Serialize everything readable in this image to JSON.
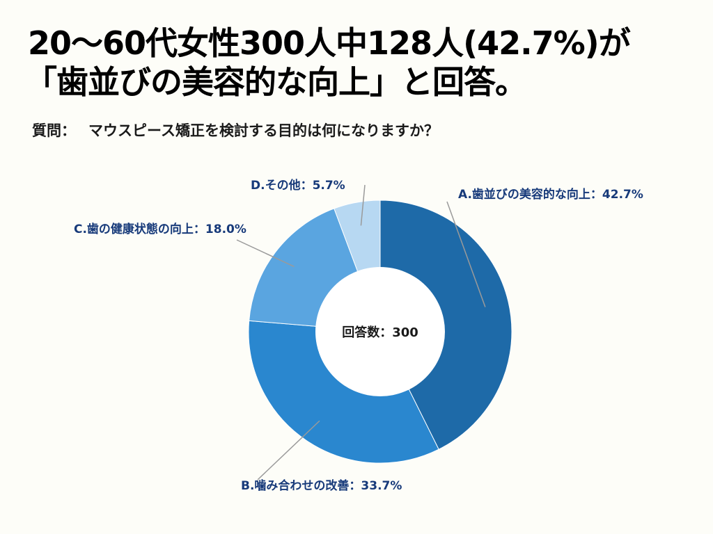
{
  "headline": {
    "line1": "20〜60代女性300人中128人(42.7%)が",
    "line2": "「歯並びの美容的な向上」と回答。"
  },
  "question": {
    "prefix": "質問：",
    "text": "マウスピース矯正を検討する目的は何になりますか？"
  },
  "chart_data": {
    "type": "pie",
    "donut": true,
    "center_label": "回答数：300",
    "categories": [
      "A.歯並びの美容的な向上",
      "B.噛み合わせの改善",
      "C.歯の健康状態の向上",
      "D.その他"
    ],
    "values": [
      42.7,
      33.7,
      18.0,
      5.7
    ],
    "labels": [
      "A.歯並びの美容的な向上：42.7%",
      "B.噛み合わせの改善：33.7%",
      "C.歯の健康状態の向上：18.0%",
      "D.その他：5.7%"
    ],
    "colors": [
      "#1e6aa8",
      "#2a87cf",
      "#5aa5e0",
      "#b7d8f2"
    ],
    "unit": "%"
  }
}
